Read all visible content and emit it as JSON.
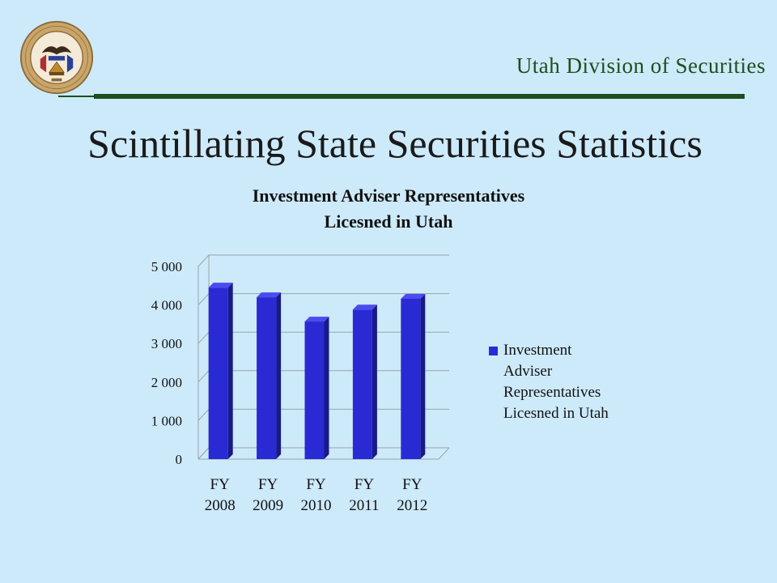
{
  "header": {
    "organization": "Utah Division of Securities",
    "seal": {
      "ring_text": "THE GREAT SEAL OF THE STATE OF UTAH",
      "motto": "INDUSTRY",
      "year": "1896",
      "icon": "state-seal-icon"
    }
  },
  "slide": {
    "title": "Scintillating State Securities Statistics"
  },
  "colors": {
    "background": "#cdeafb",
    "bar_front": "#2a2ad4",
    "bar_side": "#181a8a",
    "bar_top": "#4b4bef",
    "rule": "#1b4f1f",
    "org_text": "#1f4d1a"
  },
  "chart_data": {
    "type": "bar",
    "title_lines": [
      "Investment Adviser Representatives",
      "Licesned in Utah"
    ],
    "categories": [
      [
        "FY",
        "2008"
      ],
      [
        "FY",
        "2009"
      ],
      [
        "FY",
        "2010"
      ],
      [
        "FY",
        "2011"
      ],
      [
        "FY",
        "2012"
      ]
    ],
    "series": [
      {
        "name": "Investment Adviser Representatives Licesned in Utah",
        "name_lines": [
          "Investment",
          "Adviser",
          "Representatives",
          "Licesned in Utah"
        ],
        "values": [
          4450,
          4200,
          3570,
          3880,
          4160
        ]
      }
    ],
    "ylim": [
      0,
      5000
    ],
    "yticks": [
      {
        "value": 0,
        "label": "0"
      },
      {
        "value": 1000,
        "label": "1 000"
      },
      {
        "value": 2000,
        "label": "2 000"
      },
      {
        "value": 3000,
        "label": "3 000"
      },
      {
        "value": 4000,
        "label": "4 000"
      },
      {
        "value": 5000,
        "label": "5 000"
      }
    ],
    "grid": true,
    "legend_position": "right",
    "style": "3d-column"
  }
}
